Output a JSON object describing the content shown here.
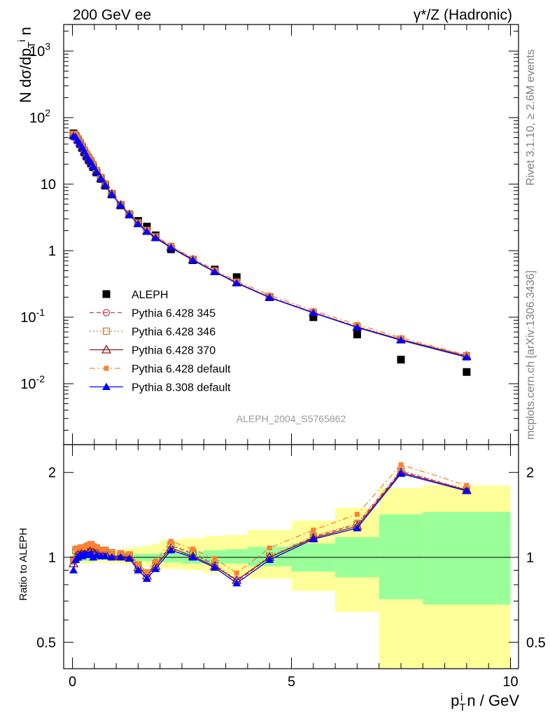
{
  "header": {
    "left_title": "200 GeV ee",
    "right_title": "γ*/Z (Hadronic)"
  },
  "side_labels": {
    "rivet": "Rivet 3.1.10, ≥ 2.6M events",
    "mcplots": "mcplots.cern.ch [arXiv:1306.3436]"
  },
  "watermark": "ALEPH_2004_S5765862",
  "chart_data": [
    {
      "type": "scatter",
      "panel": "main",
      "ylabel": "N dσ/dp_T^i n",
      "yscale": "log",
      "ylim": [
        0.0012,
        2500
      ],
      "xlim": [
        -0.25,
        10
      ],
      "y_tick_labels": [
        "10^-2",
        "10^-1",
        "1",
        "10",
        "10^2",
        "10^3"
      ],
      "legend_position": "center-left",
      "series": [
        {
          "name": "ALEPH",
          "color": "#000000",
          "marker": "square",
          "x": [
            0.025,
            0.075,
            0.125,
            0.175,
            0.225,
            0.275,
            0.325,
            0.375,
            0.425,
            0.475,
            0.55,
            0.65,
            0.75,
            0.9,
            1.1,
            1.3,
            1.5,
            1.7,
            1.9,
            2.25,
            2.75,
            3.25,
            3.75,
            4.5,
            5.5,
            6.5,
            7.5,
            9.0
          ],
          "y": [
            58,
            52,
            46,
            40,
            35,
            30,
            26,
            23,
            20.5,
            18,
            15,
            12,
            9.5,
            7,
            4.8,
            3.5,
            2.8,
            2.3,
            1.7,
            1.05,
            0.72,
            0.52,
            0.4,
            0.2,
            0.1,
            0.055,
            0.023,
            0.015
          ]
        },
        {
          "name": "Pythia 6.428 345",
          "color": "#c04050",
          "marker": "circle-open",
          "line": "dashed",
          "x": [
            0.025,
            0.075,
            0.125,
            0.175,
            0.225,
            0.275,
            0.325,
            0.375,
            0.425,
            0.475,
            0.55,
            0.65,
            0.75,
            0.9,
            1.1,
            1.3,
            1.5,
            1.7,
            1.9,
            2.25,
            2.75,
            3.25,
            3.75,
            4.5,
            5.5,
            6.5,
            7.5,
            9.0
          ],
          "y": [
            56,
            54.5,
            48,
            42.5,
            37,
            32,
            28,
            25,
            22.5,
            19.5,
            16,
            12.5,
            10,
            7.2,
            4.9,
            3.55,
            2.6,
            2.0,
            1.6,
            1.15,
            0.74,
            0.49,
            0.33,
            0.2,
            0.118,
            0.072,
            0.046,
            0.026
          ]
        },
        {
          "name": "Pythia 6.428 346",
          "color": "#b8863b",
          "marker": "square-open",
          "line": "dotted",
          "x": [
            0.025,
            0.075,
            0.125,
            0.175,
            0.225,
            0.275,
            0.325,
            0.375,
            0.425,
            0.475,
            0.55,
            0.65,
            0.75,
            0.9,
            1.1,
            1.3,
            1.5,
            1.7,
            1.9,
            2.25,
            2.75,
            3.25,
            3.75,
            4.5,
            5.5,
            6.5,
            7.5,
            9.0
          ],
          "y": [
            56.5,
            55,
            48.5,
            43,
            37.5,
            32.5,
            28.2,
            25.2,
            22.6,
            19.6,
            16.1,
            12.6,
            10.1,
            7.25,
            4.95,
            3.57,
            2.62,
            2.02,
            1.62,
            1.16,
            0.745,
            0.492,
            0.335,
            0.202,
            0.119,
            0.073,
            0.047,
            0.0265
          ]
        },
        {
          "name": "Pythia 6.428 370",
          "color": "#8b1a1a",
          "marker": "triangle-open",
          "line": "solid",
          "x": [
            0.025,
            0.075,
            0.125,
            0.175,
            0.225,
            0.275,
            0.325,
            0.375,
            0.425,
            0.475,
            0.55,
            0.65,
            0.75,
            0.9,
            1.1,
            1.3,
            1.5,
            1.7,
            1.9,
            2.25,
            2.75,
            3.25,
            3.75,
            4.5,
            5.5,
            6.5,
            7.5,
            9.0
          ],
          "y": [
            55,
            52,
            47,
            42,
            36.5,
            31.5,
            27.5,
            24.5,
            22,
            19,
            15.6,
            12.3,
            9.8,
            7.1,
            4.85,
            3.5,
            2.57,
            1.97,
            1.58,
            1.13,
            0.73,
            0.485,
            0.33,
            0.199,
            0.117,
            0.071,
            0.046,
            0.026
          ]
        },
        {
          "name": "Pythia 6.428 default",
          "color": "#ff7f33",
          "marker": "square-filled-small",
          "line": "dash-dot",
          "x": [
            0.025,
            0.075,
            0.125,
            0.175,
            0.225,
            0.275,
            0.325,
            0.375,
            0.425,
            0.475,
            0.55,
            0.65,
            0.75,
            0.9,
            1.1,
            1.3,
            1.5,
            1.7,
            1.9,
            2.25,
            2.75,
            3.25,
            3.75,
            4.5,
            5.5,
            6.5,
            7.5,
            9.0
          ],
          "y": [
            57,
            56,
            49.5,
            43.5,
            38,
            32.5,
            28.5,
            25.5,
            23,
            19.8,
            16.3,
            12.8,
            10.2,
            7.3,
            5.0,
            3.6,
            2.65,
            2.05,
            1.65,
            1.2,
            0.77,
            0.515,
            0.35,
            0.215,
            0.125,
            0.078,
            0.049,
            0.027
          ]
        },
        {
          "name": "Pythia 8.308 default",
          "color": "#0000ff",
          "marker": "triangle-filled",
          "line": "solid",
          "x": [
            0.025,
            0.075,
            0.125,
            0.175,
            0.225,
            0.275,
            0.325,
            0.375,
            0.425,
            0.475,
            0.55,
            0.65,
            0.75,
            0.9,
            1.1,
            1.3,
            1.5,
            1.7,
            1.9,
            2.25,
            2.75,
            3.25,
            3.75,
            4.5,
            5.5,
            6.5,
            7.5,
            9.0
          ],
          "y": [
            52.5,
            51,
            45,
            40.5,
            35.5,
            31,
            26.5,
            23.5,
            21.2,
            18.3,
            15.3,
            12.1,
            9.6,
            7.0,
            4.8,
            3.45,
            2.52,
            1.93,
            1.55,
            1.11,
            0.72,
            0.48,
            0.325,
            0.197,
            0.116,
            0.07,
            0.045,
            0.025
          ]
        }
      ]
    },
    {
      "type": "line",
      "panel": "ratio",
      "ylabel": "Ratio to ALEPH",
      "xlabel": "p_T^i n / GeV",
      "yscale": "log",
      "ylim": [
        0.35,
        2.35
      ],
      "xlim": [
        -0.25,
        10
      ],
      "x_tick_labels": [
        "0",
        "5",
        "10"
      ],
      "y_tick_labels": [
        "0.5",
        "1",
        "2"
      ],
      "reference_line": 1,
      "band_edges": [
        0,
        0.05,
        0.1,
        0.15,
        0.2,
        0.25,
        0.3,
        0.35,
        0.4,
        0.45,
        0.5,
        0.6,
        0.7,
        0.8,
        1.0,
        1.2,
        1.4,
        1.6,
        1.8,
        2.0,
        2.5,
        3.0,
        3.5,
        4.0,
        5.0,
        6.0,
        7.0,
        8.0,
        10.0
      ],
      "stat_band": {
        "color": "#99ff99",
        "lo": [
          0.97,
          0.97,
          0.97,
          0.97,
          0.97,
          0.97,
          0.97,
          0.97,
          0.97,
          0.97,
          0.98,
          0.98,
          0.98,
          0.98,
          0.98,
          0.97,
          0.97,
          0.97,
          0.97,
          0.96,
          0.95,
          0.95,
          0.95,
          0.93,
          0.89,
          0.85,
          0.71,
          0.68
        ],
        "hi": [
          1.03,
          1.03,
          1.03,
          1.03,
          1.03,
          1.03,
          1.03,
          1.03,
          1.03,
          1.03,
          1.02,
          1.02,
          1.02,
          1.02,
          1.02,
          1.03,
          1.03,
          1.03,
          1.03,
          1.04,
          1.05,
          1.06,
          1.07,
          1.09,
          1.12,
          1.18,
          1.42,
          1.45
        ]
      },
      "total_band": {
        "color": "#ffff99",
        "lo": [
          0.95,
          0.95,
          0.95,
          0.95,
          0.95,
          0.95,
          0.95,
          0.95,
          0.95,
          0.95,
          0.96,
          0.96,
          0.96,
          0.95,
          0.95,
          0.94,
          0.93,
          0.93,
          0.93,
          0.91,
          0.9,
          0.88,
          0.86,
          0.84,
          0.76,
          0.64,
          0.2,
          0.2
        ],
        "hi": [
          1.05,
          1.05,
          1.05,
          1.05,
          1.05,
          1.05,
          1.05,
          1.05,
          1.05,
          1.05,
          1.04,
          1.04,
          1.04,
          1.06,
          1.06,
          1.08,
          1.09,
          1.1,
          1.12,
          1.15,
          1.17,
          1.19,
          1.2,
          1.25,
          1.35,
          1.5,
          1.76,
          1.8
        ]
      },
      "series": [
        {
          "name": "Pythia 6.428 345",
          "color": "#c04050",
          "marker": "circle-open",
          "line": "dashed",
          "x": [
            0.025,
            0.075,
            0.125,
            0.175,
            0.225,
            0.275,
            0.325,
            0.375,
            0.425,
            0.475,
            0.55,
            0.65,
            0.75,
            0.9,
            1.1,
            1.3,
            1.5,
            1.7,
            1.9,
            2.25,
            2.75,
            3.25,
            3.75,
            4.5,
            5.5,
            6.5,
            7.5,
            9.0
          ],
          "y": [
            0.97,
            1.05,
            1.05,
            1.06,
            1.06,
            1.07,
            1.08,
            1.09,
            1.1,
            1.08,
            1.07,
            1.04,
            1.05,
            1.03,
            1.02,
            1.01,
            0.93,
            0.87,
            0.94,
            1.1,
            1.03,
            0.94,
            0.82,
            1.0,
            1.18,
            1.31,
            2.02,
            1.73
          ]
        },
        {
          "name": "Pythia 6.428 346",
          "color": "#b8863b",
          "marker": "square-open",
          "line": "dotted",
          "x": [
            0.025,
            0.075,
            0.125,
            0.175,
            0.225,
            0.275,
            0.325,
            0.375,
            0.425,
            0.475,
            0.55,
            0.65,
            0.75,
            0.9,
            1.1,
            1.3,
            1.5,
            1.7,
            1.9,
            2.25,
            2.75,
            3.25,
            3.75,
            4.5,
            5.5,
            6.5,
            7.5,
            9.0
          ],
          "y": [
            0.98,
            1.06,
            1.06,
            1.07,
            1.07,
            1.08,
            1.09,
            1.1,
            1.11,
            1.09,
            1.08,
            1.05,
            1.06,
            1.04,
            1.03,
            1.02,
            0.94,
            0.88,
            0.95,
            1.11,
            1.04,
            0.95,
            0.83,
            1.01,
            1.19,
            1.32,
            2.04,
            1.74
          ]
        },
        {
          "name": "Pythia 6.428 370",
          "color": "#8b1a1a",
          "marker": "triangle-open",
          "line": "solid",
          "x": [
            0.025,
            0.075,
            0.125,
            0.175,
            0.225,
            0.275,
            0.325,
            0.375,
            0.425,
            0.475,
            0.55,
            0.65,
            0.75,
            0.9,
            1.1,
            1.3,
            1.5,
            1.7,
            1.9,
            2.25,
            2.75,
            3.25,
            3.75,
            4.5,
            5.5,
            6.5,
            7.5,
            9.0
          ],
          "y": [
            0.95,
            1.0,
            1.02,
            1.05,
            1.04,
            1.05,
            1.06,
            1.07,
            1.07,
            1.05,
            1.04,
            1.03,
            1.03,
            1.01,
            1.01,
            1.0,
            0.92,
            0.86,
            0.93,
            1.08,
            1.01,
            0.93,
            0.83,
            1.0,
            1.17,
            1.29,
            2.0,
            1.73
          ]
        },
        {
          "name": "Pythia 6.428 default",
          "color": "#ff7f33",
          "marker": "square-filled-small",
          "line": "dash-dot",
          "x": [
            0.025,
            0.075,
            0.125,
            0.175,
            0.225,
            0.275,
            0.325,
            0.375,
            0.425,
            0.475,
            0.55,
            0.65,
            0.75,
            0.9,
            1.1,
            1.3,
            1.5,
            1.7,
            1.9,
            2.25,
            2.75,
            3.25,
            3.75,
            4.5,
            5.5,
            6.5,
            7.5,
            9.0
          ],
          "y": [
            0.98,
            1.08,
            1.08,
            1.09,
            1.09,
            1.08,
            1.1,
            1.11,
            1.12,
            1.1,
            1.09,
            1.07,
            1.07,
            1.04,
            1.04,
            1.03,
            0.95,
            0.89,
            0.97,
            1.14,
            1.07,
            0.99,
            0.88,
            1.08,
            1.25,
            1.42,
            2.13,
            1.8
          ]
        },
        {
          "name": "Pythia 8.308 default",
          "color": "#0000ff",
          "marker": "triangle-filled",
          "line": "solid",
          "x": [
            0.025,
            0.075,
            0.125,
            0.175,
            0.225,
            0.275,
            0.325,
            0.375,
            0.425,
            0.475,
            0.55,
            0.65,
            0.75,
            0.9,
            1.1,
            1.3,
            1.5,
            1.7,
            1.9,
            2.25,
            2.75,
            3.25,
            3.75,
            4.5,
            5.5,
            6.5,
            7.5,
            9.0
          ],
          "y": [
            0.9,
            0.98,
            1.0,
            1.02,
            1.01,
            1.03,
            1.02,
            1.02,
            1.03,
            1.0,
            1.02,
            1.01,
            1.01,
            1.0,
            1.0,
            0.99,
            0.9,
            0.84,
            0.91,
            1.06,
            1.0,
            0.92,
            0.81,
            0.98,
            1.16,
            1.27,
            1.98,
            1.72
          ]
        }
      ]
    }
  ]
}
